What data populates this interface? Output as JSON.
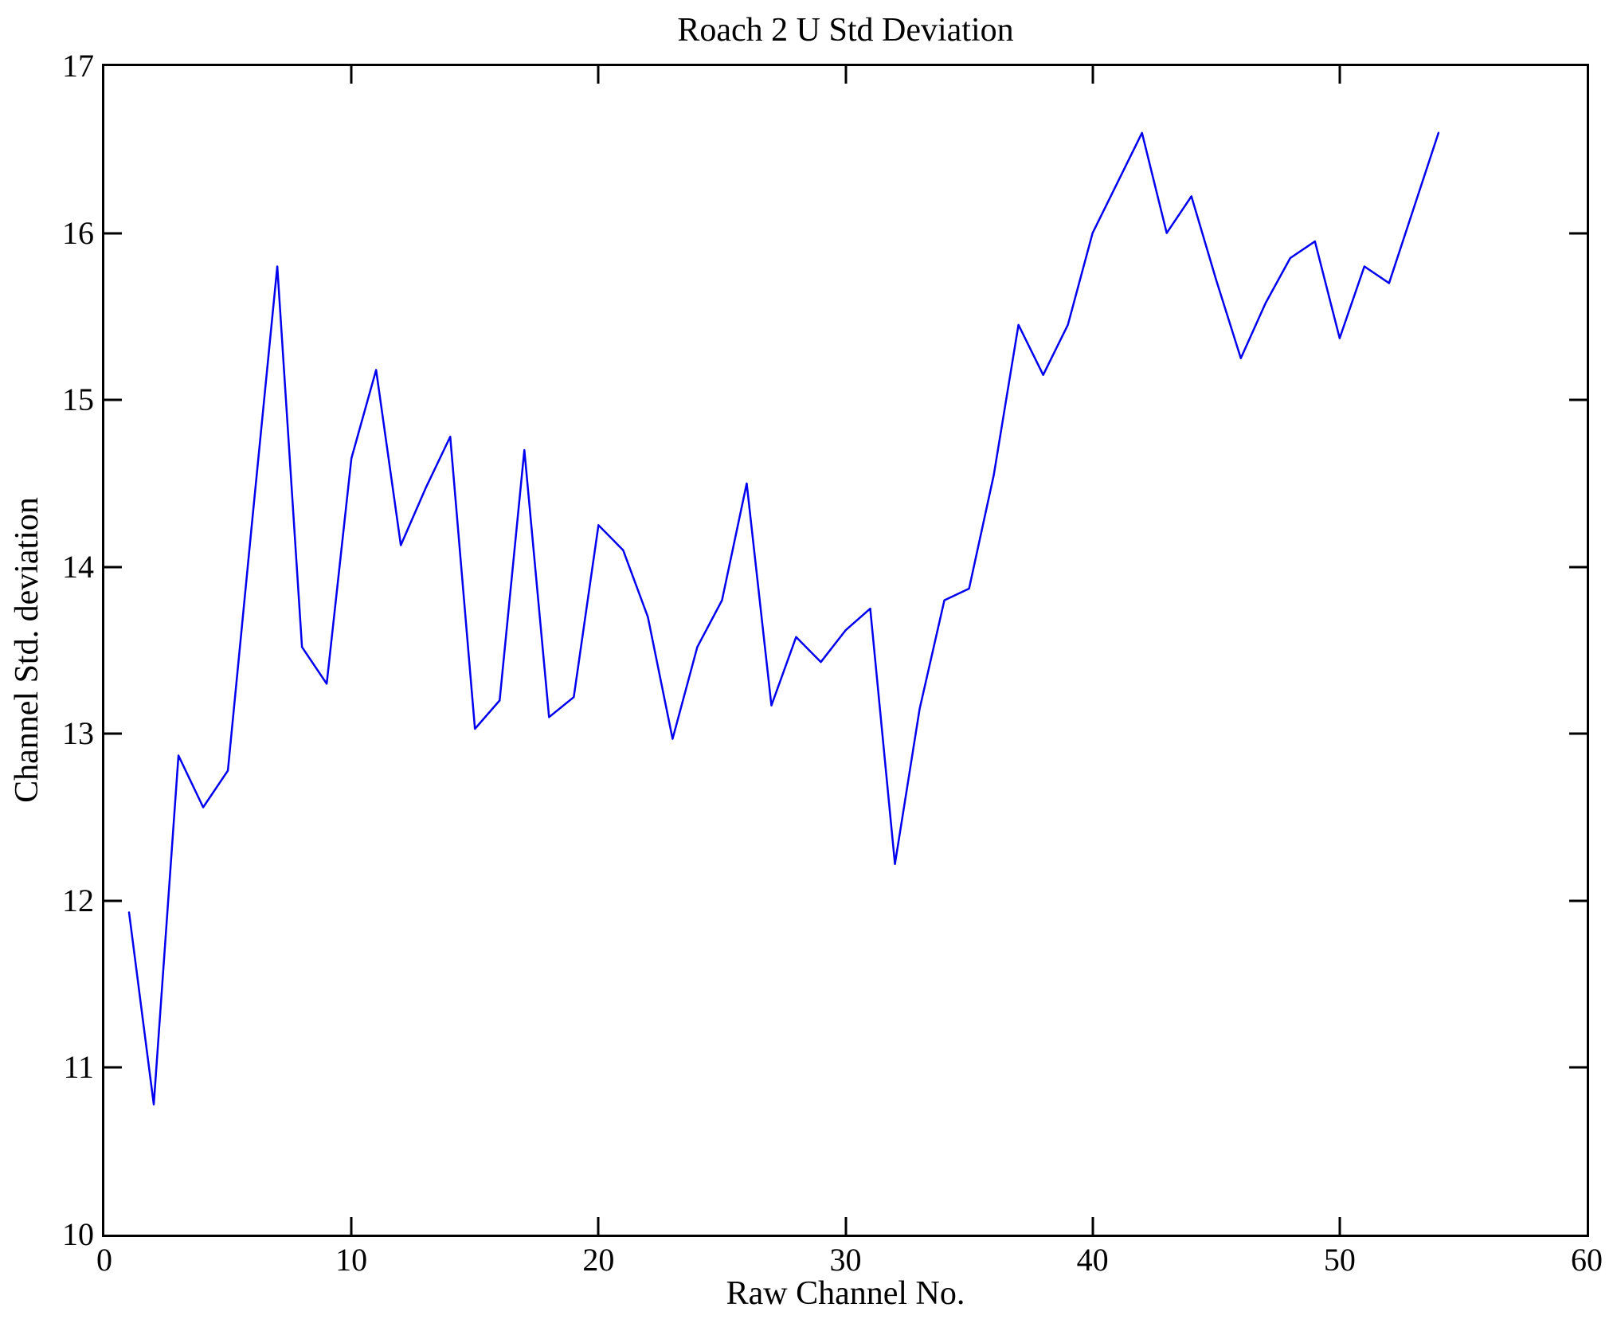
{
  "figure": {
    "background": "#ffffff",
    "axis_color": "#000000"
  },
  "chart_data": {
    "type": "line",
    "title": "Roach 2 U Std Deviation",
    "xlabel": "Raw Channel No.",
    "ylabel": "Channel Std. deviation",
    "xlim": [
      0,
      60
    ],
    "ylim": [
      10,
      17
    ],
    "x_ticks": [
      0,
      10,
      20,
      30,
      40,
      50,
      60
    ],
    "y_ticks": [
      10,
      11,
      12,
      13,
      14,
      15,
      16,
      17
    ],
    "grid": false,
    "legend": "none",
    "line_color": "#0000EE",
    "x": [
      1,
      2,
      3,
      4,
      5,
      6,
      7,
      8,
      9,
      10,
      11,
      12,
      13,
      14,
      15,
      16,
      17,
      18,
      19,
      20,
      21,
      22,
      23,
      24,
      25,
      26,
      27,
      28,
      29,
      30,
      31,
      32,
      33,
      34,
      35,
      36,
      37,
      38,
      39,
      40,
      41,
      42,
      43,
      44,
      45,
      46,
      47,
      48,
      49,
      50,
      51,
      52,
      53,
      54
    ],
    "values": [
      11.93,
      10.78,
      12.87,
      12.56,
      12.78,
      14.3,
      15.8,
      13.52,
      13.3,
      14.65,
      15.18,
      14.13,
      14.47,
      14.78,
      13.03,
      13.2,
      14.7,
      13.1,
      13.22,
      14.25,
      14.1,
      13.7,
      12.97,
      13.52,
      13.8,
      14.5,
      13.17,
      13.58,
      13.43,
      13.62,
      13.75,
      12.22,
      13.15,
      13.8,
      13.87,
      14.55,
      15.45,
      15.15,
      15.45,
      16.0,
      16.3,
      16.6,
      16.0,
      16.22,
      15.72,
      15.25,
      15.58,
      15.85,
      15.95,
      15.37,
      15.8,
      15.7,
      16.15,
      16.6
    ]
  }
}
